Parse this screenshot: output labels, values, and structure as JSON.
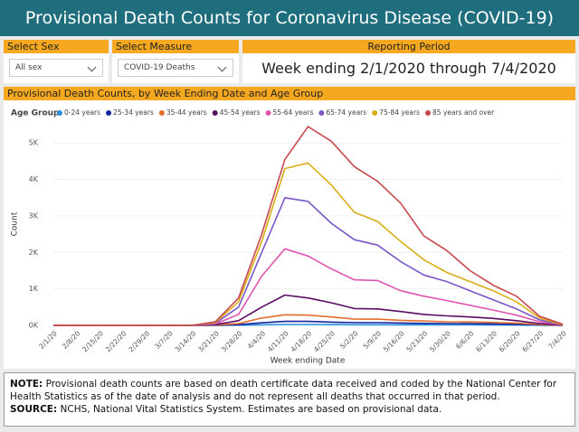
{
  "header": {
    "title": "Provisional Death Counts for Coronavirus Disease (COVID-19)"
  },
  "filters": [
    {
      "label": "Select Sex",
      "value": "All sex"
    },
    {
      "label": "Select Measure",
      "value": "COVID-19 Deaths"
    }
  ],
  "reporting_period": {
    "label": "Reporting Period",
    "value": "Week ending 2/1/2020 through 7/4/2020"
  },
  "chart_data": {
    "type": "line",
    "title": "Provisional Death Counts, by Week Ending Date and Age Group",
    "legend_title": "Age Group",
    "x_label": "Week ending Date",
    "y_label": "Count",
    "categories": [
      "2/1/20",
      "2/8/20",
      "2/15/20",
      "2/22/20",
      "2/29/20",
      "3/7/20",
      "3/14/20",
      "3/21/20",
      "3/28/20",
      "4/4/20",
      "4/11/20",
      "4/18/20",
      "4/25/20",
      "5/2/20",
      "5/9/20",
      "5/16/20",
      "5/23/20",
      "5/30/20",
      "6/6/20",
      "6/13/20",
      "6/20/20",
      "6/27/20",
      "7/4/20"
    ],
    "series": [
      {
        "name": "0-24 years",
        "color": "#2b8fe0",
        "values": [
          0,
          0,
          0,
          0,
          0,
          0,
          0,
          1,
          5,
          15,
          25,
          25,
          20,
          18,
          18,
          15,
          14,
          12,
          12,
          10,
          8,
          4,
          0
        ]
      },
      {
        "name": "25-34 years",
        "color": "#14239b",
        "values": [
          0,
          0,
          0,
          0,
          0,
          0,
          0,
          3,
          20,
          70,
          110,
          110,
          90,
          75,
          75,
          65,
          55,
          50,
          45,
          40,
          30,
          12,
          1
        ]
      },
      {
        "name": "35-44 years",
        "color": "#e36f2e",
        "values": [
          0,
          0,
          0,
          0,
          0,
          0,
          0,
          8,
          50,
          200,
          290,
          280,
          230,
          170,
          170,
          140,
          120,
          100,
          95,
          80,
          60,
          25,
          2
        ]
      },
      {
        "name": "45-54 years",
        "color": "#5a0b63",
        "values": [
          0,
          0,
          0,
          0,
          0,
          0,
          0,
          20,
          130,
          500,
          830,
          750,
          620,
          460,
          450,
          380,
          300,
          260,
          230,
          190,
          130,
          50,
          5
        ]
      },
      {
        "name": "55-64 years",
        "color": "#e055b0",
        "values": [
          0,
          0,
          0,
          0,
          0,
          0,
          0,
          40,
          300,
          1350,
          2100,
          1900,
          1550,
          1250,
          1230,
          950,
          800,
          680,
          550,
          420,
          280,
          100,
          10
        ]
      },
      {
        "name": "65-74 years",
        "color": "#7b56c9",
        "values": [
          0,
          0,
          0,
          0,
          0,
          0,
          0,
          60,
          500,
          2000,
          3500,
          3400,
          2800,
          2350,
          2200,
          1750,
          1380,
          1200,
          950,
          700,
          450,
          150,
          15
        ]
      },
      {
        "name": "75-84 years",
        "color": "#d9ad14",
        "values": [
          0,
          0,
          0,
          0,
          0,
          0,
          0,
          80,
          650,
          2300,
          4300,
          4450,
          3850,
          3100,
          2850,
          2300,
          1800,
          1450,
          1200,
          950,
          650,
          200,
          20
        ]
      },
      {
        "name": "85 years and over",
        "color": "#c8474f",
        "values": [
          0,
          0,
          0,
          0,
          0,
          0,
          0,
          100,
          750,
          2500,
          4550,
          5450,
          5050,
          4350,
          3950,
          3350,
          2450,
          2050,
          1500,
          1100,
          800,
          250,
          30
        ]
      }
    ],
    "ylim": [
      0,
      5600
    ],
    "yticks": [
      {
        "value": 0,
        "label": "0K"
      },
      {
        "value": 1000,
        "label": "1K"
      },
      {
        "value": 2000,
        "label": "2K"
      },
      {
        "value": 3000,
        "label": "3K"
      },
      {
        "value": 4000,
        "label": "4K"
      },
      {
        "value": 5000,
        "label": "5K"
      }
    ],
    "grid": true
  },
  "note": {
    "label": "NOTE:",
    "text": "Provisional death counts are based on death certificate data received and coded by the National Center for Health Statistics as of the date of analysis and do not represent all deaths that occurred in that period."
  },
  "source": {
    "label": "SOURCE:",
    "text": "NCHS, National Vital Statistics System. Estimates are based on provisional data."
  }
}
